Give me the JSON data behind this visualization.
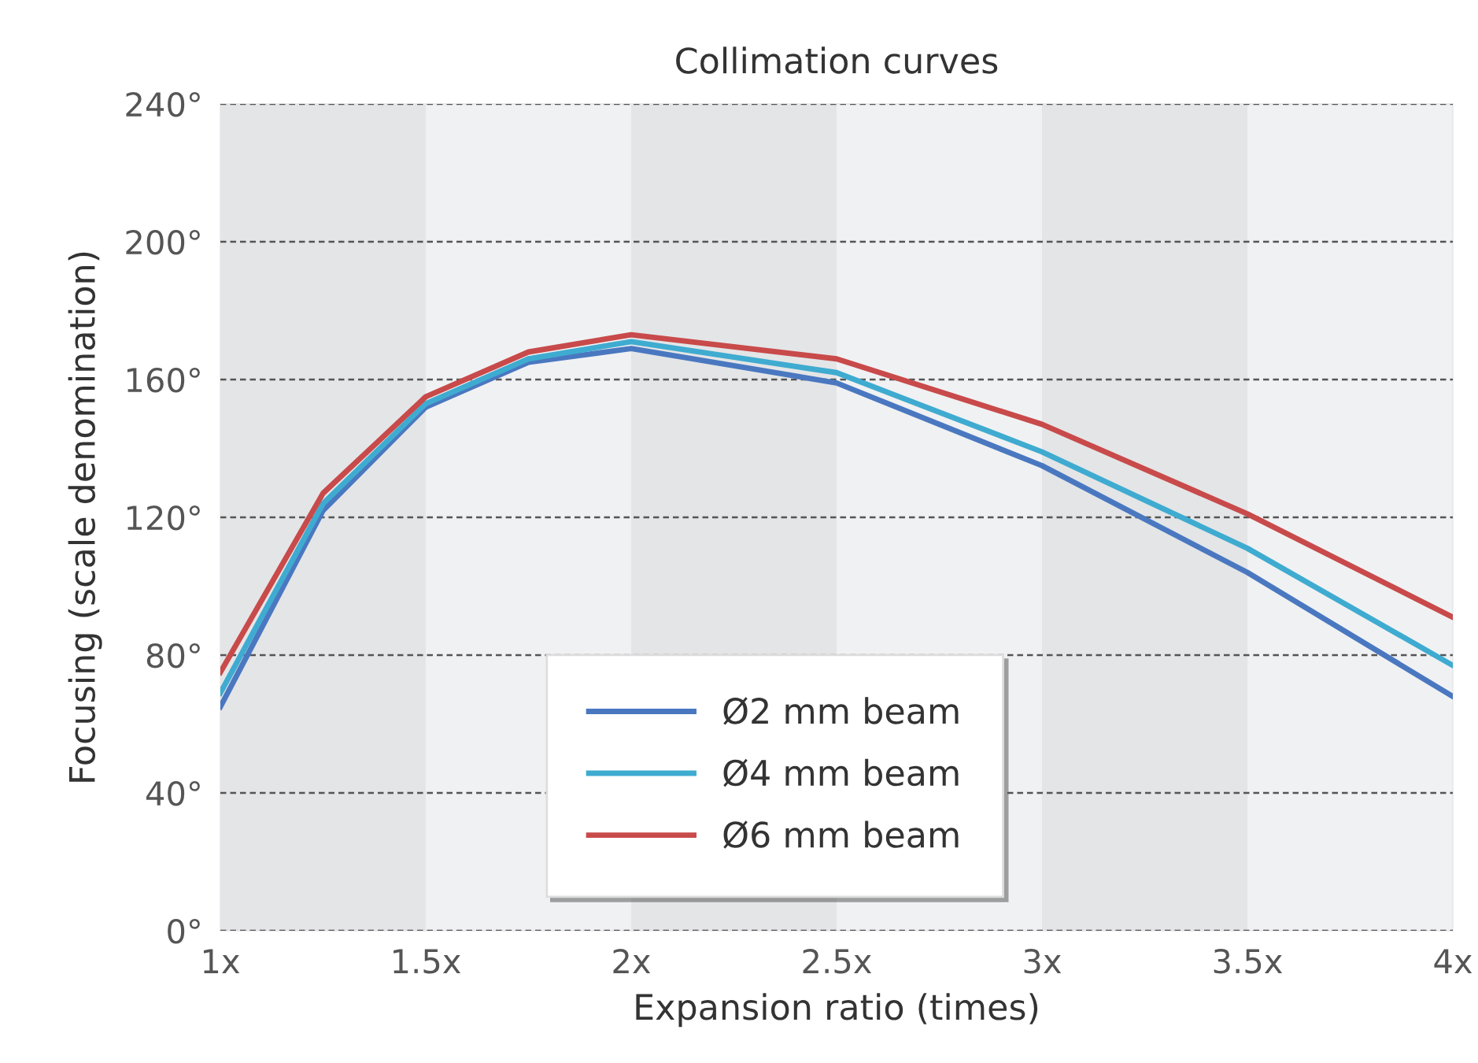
{
  "chart_data": {
    "type": "line",
    "title": "Collimation curves",
    "xlabel": "Expansion ratio (times)",
    "ylabel": "Focusing (scale denomination)",
    "x": [
      1,
      1.25,
      1.5,
      1.75,
      2,
      2.5,
      3,
      3.5,
      4
    ],
    "series": [
      {
        "name": "Ø2 mm beam",
        "color": "#4a78c0",
        "values": [
          65,
          122,
          152,
          165,
          169,
          159,
          135,
          104,
          68
        ]
      },
      {
        "name": "Ø4 mm beam",
        "color": "#3fabd0",
        "values": [
          69,
          124,
          153,
          166,
          171,
          162,
          139,
          111,
          77
        ]
      },
      {
        "name": "Ø6 mm beam",
        "color": "#c84a4a",
        "values": [
          75,
          127,
          155,
          168,
          173,
          166,
          147,
          121,
          91
        ]
      }
    ],
    "xlim": [
      1,
      4
    ],
    "xticks": [
      {
        "value": 1,
        "label": "1x"
      },
      {
        "value": 1.5,
        "label": "1.5x"
      },
      {
        "value": 2,
        "label": "2x"
      },
      {
        "value": 2.5,
        "label": "2.5x"
      },
      {
        "value": 3,
        "label": "3x"
      },
      {
        "value": 3.5,
        "label": "3.5x"
      },
      {
        "value": 4,
        "label": "4x"
      }
    ],
    "ylim": [
      0,
      240
    ],
    "yticks": [
      {
        "value": 0,
        "label": "0°"
      },
      {
        "value": 40,
        "label": "40°"
      },
      {
        "value": 80,
        "label": "80°"
      },
      {
        "value": 120,
        "label": "120°"
      },
      {
        "value": 160,
        "label": "160°"
      },
      {
        "value": 200,
        "label": "200°"
      },
      {
        "value": 240,
        "label": "240°"
      }
    ],
    "bands": [
      {
        "axis": "x",
        "from": 1,
        "to": 1.5,
        "color": "#e4e5e7"
      },
      {
        "axis": "x",
        "from": 1.5,
        "to": 2,
        "color": "#f0f1f3"
      },
      {
        "axis": "x",
        "from": 2,
        "to": 2.5,
        "color": "#e4e5e7"
      },
      {
        "axis": "x",
        "from": 2.5,
        "to": 3,
        "color": "#f0f1f3"
      },
      {
        "axis": "x",
        "from": 3,
        "to": 3.5,
        "color": "#e4e5e7"
      },
      {
        "axis": "x",
        "from": 3.5,
        "to": 4,
        "color": "#f0f1f3"
      }
    ],
    "grid": "y",
    "legend": "bottom",
    "marker": "none",
    "line_style": "solid"
  }
}
